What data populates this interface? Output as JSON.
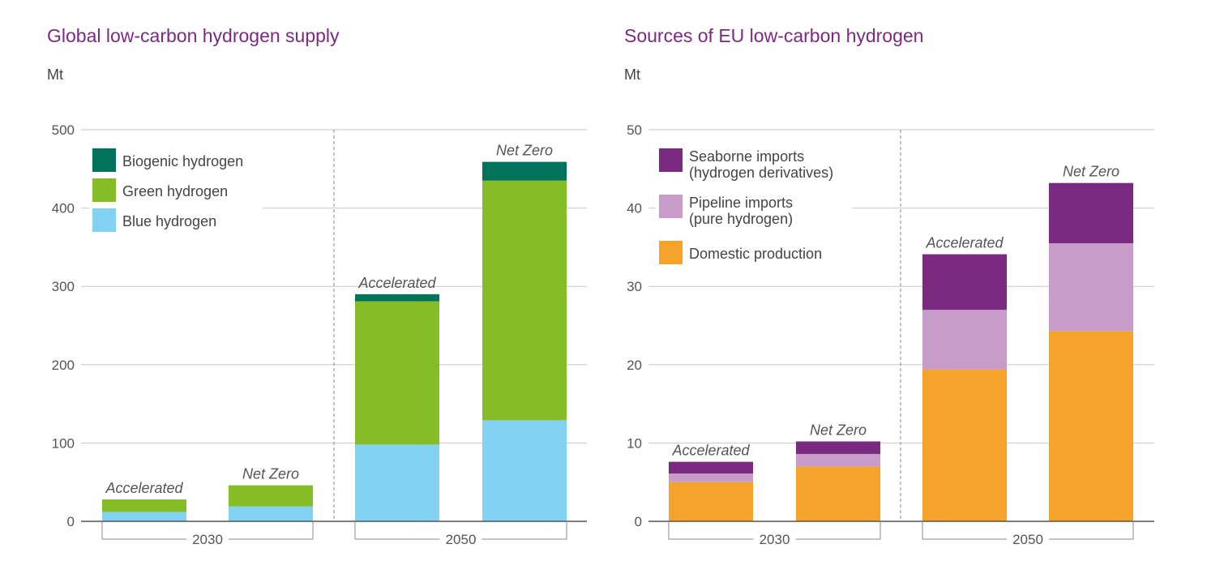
{
  "chart_data": [
    {
      "type": "bar",
      "stacked": true,
      "title": "Global low-carbon hydrogen supply",
      "unit": "Mt",
      "ylim": [
        0,
        500
      ],
      "yticks": [
        0,
        100,
        200,
        300,
        400,
        500
      ],
      "groups": [
        "2030",
        "2050"
      ],
      "bars": [
        {
          "group": "2030",
          "label": "Accelerated"
        },
        {
          "group": "2030",
          "label": "Net Zero"
        },
        {
          "group": "2050",
          "label": "Accelerated"
        },
        {
          "group": "2050",
          "label": "Net Zero"
        }
      ],
      "series": [
        {
          "name": "Blue hydrogen",
          "color": "#82d2f4",
          "values": [
            12,
            19,
            98,
            129
          ]
        },
        {
          "name": "Green hydrogen",
          "color": "#86bc25",
          "values": [
            16,
            27,
            183,
            306
          ]
        },
        {
          "name": "Biogenic hydrogen",
          "color": "#00735a",
          "values": [
            0,
            0,
            9,
            24
          ]
        }
      ],
      "legend_order": [
        "Biogenic hydrogen",
        "Green hydrogen",
        "Blue hydrogen"
      ],
      "legend_position": "top-left",
      "grid": true
    },
    {
      "type": "bar",
      "stacked": true,
      "title": "Sources of EU low-carbon hydrogen",
      "unit": "Mt",
      "ylim": [
        0,
        50
      ],
      "yticks": [
        0,
        10,
        20,
        30,
        40,
        50
      ],
      "groups": [
        "2030",
        "2050"
      ],
      "bars": [
        {
          "group": "2030",
          "label": "Accelerated"
        },
        {
          "group": "2030",
          "label": "Net Zero"
        },
        {
          "group": "2050",
          "label": "Accelerated"
        },
        {
          "group": "2050",
          "label": "Net Zero"
        }
      ],
      "series": [
        {
          "name": "Domestic production",
          "color": "#f5a32a",
          "values": [
            5,
            7,
            19.4,
            24.3
          ]
        },
        {
          "name": "Pipeline imports (pure hydrogen)",
          "legend_lines": [
            "Pipeline imports",
            "(pure hydrogen)"
          ],
          "color": "#c89cc8",
          "values": [
            1.1,
            1.6,
            7.6,
            11.2
          ]
        },
        {
          "name": "Seaborne imports (hydrogen derivatives)",
          "legend_lines": [
            "Seaborne imports",
            "(hydrogen derivatives)"
          ],
          "color": "#7b2a82",
          "values": [
            1.5,
            1.6,
            7.1,
            7.7
          ]
        }
      ],
      "legend_order": [
        "Seaborne imports (hydrogen derivatives)",
        "Pipeline imports (pure hydrogen)",
        "Domestic production"
      ],
      "legend_position": "top-left",
      "grid": true
    }
  ],
  "colors": {
    "title": "#7b2a82",
    "grid": "#c8c8c8",
    "axis": "#555555"
  }
}
